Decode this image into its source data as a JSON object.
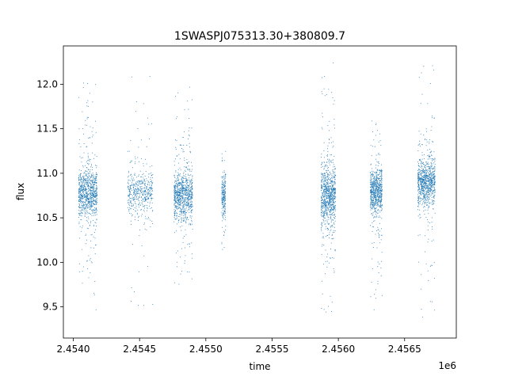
{
  "chart_data": {
    "type": "scatter",
    "title": "1SWASPJ075313.30+380809.7",
    "xlabel": "time",
    "ylabel": "flux",
    "x_offset_label": "1e6",
    "xlim": [
      2453925,
      2456890
    ],
    "ylim": [
      9.15,
      12.43
    ],
    "grid": false,
    "marker_color": "#1f77b4",
    "xticks": {
      "values": [
        2454000,
        2454500,
        2455000,
        2455500,
        2456000,
        2456500
      ],
      "labels": [
        "2.4540",
        "2.4545",
        "2.4550",
        "2.4555",
        "2.4560",
        "2.4565"
      ]
    },
    "yticks": {
      "values": [
        9.5,
        10.0,
        10.5,
        11.0,
        11.5,
        12.0
      ],
      "labels": [
        "9.5",
        "10.0",
        "10.5",
        "11.0",
        "11.5",
        "12.0"
      ]
    },
    "observing_seasons": [
      {
        "start": 2454040,
        "end": 2454180,
        "center": 10.78,
        "core_halfwidth": 0.25,
        "ymin": 9.38,
        "ymax": 12.1,
        "density": 1.0
      },
      {
        "start": 2454410,
        "end": 2454600,
        "center": 10.78,
        "core_halfwidth": 0.22,
        "ymin": 9.38,
        "ymax": 12.27,
        "density": 0.55
      },
      {
        "start": 2454760,
        "end": 2454900,
        "center": 10.75,
        "core_halfwidth": 0.24,
        "ymin": 9.75,
        "ymax": 12.0,
        "density": 1.0
      },
      {
        "start": 2455120,
        "end": 2455150,
        "center": 10.75,
        "core_halfwidth": 0.2,
        "ymin": 10.1,
        "ymax": 11.45,
        "density": 0.25
      },
      {
        "start": 2455870,
        "end": 2455980,
        "center": 10.75,
        "core_halfwidth": 0.3,
        "ymin": 9.32,
        "ymax": 12.27,
        "density": 1.0
      },
      {
        "start": 2456240,
        "end": 2456330,
        "center": 10.8,
        "core_halfwidth": 0.22,
        "ymin": 9.35,
        "ymax": 11.6,
        "density": 0.8
      },
      {
        "start": 2456600,
        "end": 2456730,
        "center": 10.9,
        "core_halfwidth": 0.22,
        "ymin": 9.38,
        "ymax": 12.25,
        "density": 1.0
      }
    ]
  }
}
